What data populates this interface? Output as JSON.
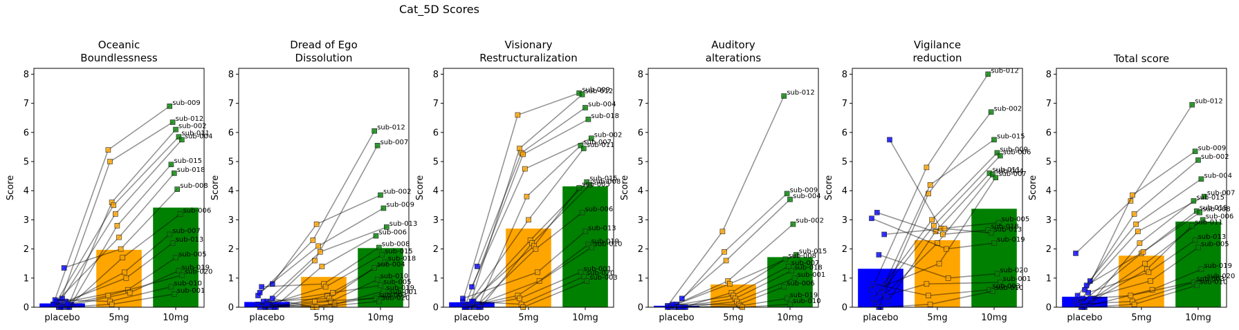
{
  "suptitle": "Cat_5D Scores",
  "colors": {
    "placebo": "#0000ff",
    "5mg": "#ffa500",
    "10mg": "#008000",
    "line": "#555555"
  },
  "chart_data": {
    "type": "bar",
    "title": "Cat_5D Scores",
    "categories": [
      "placebo",
      "5mg",
      "10mg"
    ],
    "ylabel": "Score",
    "ylim": [
      0,
      8.2
    ],
    "yticks": [
      0,
      1,
      2,
      3,
      4,
      5,
      6,
      7,
      8
    ],
    "grid": false,
    "panels": [
      {
        "title": [
          "Oceanic",
          "Boundlessness"
        ],
        "means": [
          0.13,
          1.97,
          3.42
        ],
        "subjects": [
          {
            "id": "sub-009",
            "values": [
              0.1,
              5.4,
              6.9
            ]
          },
          {
            "id": "sub-012",
            "values": [
              0.2,
              5.0,
              6.35
            ]
          },
          {
            "id": "sub-002",
            "values": [
              0.0,
              3.6,
              6.1
            ]
          },
          {
            "id": "sub-011",
            "values": [
              0.1,
              3.5,
              5.85
            ]
          },
          {
            "id": "sub-004",
            "values": [
              0.3,
              3.2,
              5.75
            ]
          },
          {
            "id": "sub-015",
            "values": [
              0.0,
              2.8,
              4.9
            ]
          },
          {
            "id": "sub-018",
            "values": [
              0.2,
              2.4,
              4.6
            ]
          },
          {
            "id": "sub-008",
            "values": [
              1.35,
              2.0,
              4.05
            ]
          },
          {
            "id": "sub-006",
            "values": [
              0.1,
              1.7,
              3.2
            ]
          },
          {
            "id": "sub-007",
            "values": [
              0.0,
              1.2,
              2.5
            ]
          },
          {
            "id": "sub-013",
            "values": [
              0.2,
              1.0,
              2.2
            ]
          },
          {
            "id": "sub-005",
            "values": [
              0.1,
              0.6,
              1.7
            ]
          },
          {
            "id": "sub-019",
            "values": [
              0.0,
              0.5,
              1.25
            ]
          },
          {
            "id": "sub-020",
            "values": [
              0.1,
              0.4,
              1.1
            ]
          },
          {
            "id": "sub-010",
            "values": [
              0.25,
              0.2,
              0.7
            ]
          },
          {
            "id": "sub-001",
            "values": [
              0.0,
              0.1,
              0.45
            ]
          }
        ]
      },
      {
        "title": [
          "Dread of Ego",
          "Dissolution"
        ],
        "means": [
          0.18,
          1.04,
          2.03
        ],
        "subjects": [
          {
            "id": "sub-012",
            "values": [
              0.4,
              2.3,
              6.05
            ]
          },
          {
            "id": "sub-007",
            "values": [
              0.0,
              1.6,
              5.55
            ]
          },
          {
            "id": "sub-002",
            "values": [
              0.8,
              2.85,
              3.85
            ]
          },
          {
            "id": "sub-009",
            "values": [
              0.5,
              2.1,
              3.4
            ]
          },
          {
            "id": "sub-013",
            "values": [
              0.2,
              1.9,
              2.75
            ]
          },
          {
            "id": "sub-006",
            "values": [
              0.0,
              1.4,
              2.45
            ]
          },
          {
            "id": "sub-008",
            "values": [
              0.7,
              0.8,
              2.05
            ]
          },
          {
            "id": "sub-015",
            "values": [
              0.1,
              0.7,
              1.8
            ]
          },
          {
            "id": "sub-018",
            "values": [
              0.0,
              0.4,
              1.55
            ]
          },
          {
            "id": "sub-004",
            "values": [
              0.2,
              0.3,
              1.35
            ]
          },
          {
            "id": "sub-010",
            "values": [
              0.0,
              0.2,
              0.95
            ]
          },
          {
            "id": "sub-005",
            "values": [
              0.1,
              0.5,
              0.75
            ]
          },
          {
            "id": "sub-019",
            "values": [
              0.0,
              0.1,
              0.55
            ]
          },
          {
            "id": "sub-001",
            "values": [
              0.3,
              0.0,
              0.4
            ]
          },
          {
            "id": "sub-003",
            "values": [
              0.0,
              0.2,
              0.3
            ]
          },
          {
            "id": "sub-020",
            "values": [
              0.1,
              0.0,
              0.2
            ]
          }
        ]
      },
      {
        "title": [
          "Visionary",
          "Restructuralization"
        ],
        "means": [
          0.17,
          2.7,
          4.15
        ],
        "subjects": [
          {
            "id": "sub-009",
            "values": [
              0.2,
              6.6,
              7.35
            ]
          },
          {
            "id": "sub-012",
            "values": [
              0.1,
              5.45,
              7.3
            ]
          },
          {
            "id": "sub-004",
            "values": [
              1.4,
              5.3,
              6.85
            ]
          },
          {
            "id": "sub-018",
            "values": [
              0.0,
              5.25,
              6.45
            ]
          },
          {
            "id": "sub-002",
            "values": [
              0.7,
              4.75,
              5.8
            ]
          },
          {
            "id": "sub-007",
            "values": [
              0.1,
              3.8,
              5.55
            ]
          },
          {
            "id": "sub-011",
            "values": [
              0.0,
              3.0,
              5.45
            ]
          },
          {
            "id": "sub-015",
            "values": [
              0.2,
              2.3,
              4.3
            ]
          },
          {
            "id": "sub-008",
            "values": [
              0.0,
              2.2,
              4.2
            ]
          },
          {
            "id": "sub-005",
            "values": [
              0.1,
              2.1,
              4.1
            ]
          },
          {
            "id": "sub-006",
            "values": [
              0.0,
              2.0,
              3.25
            ]
          },
          {
            "id": "sub-013",
            "values": [
              0.3,
              1.2,
              2.6
            ]
          },
          {
            "id": "sub-019",
            "values": [
              0.0,
              0.9,
              2.15
            ]
          },
          {
            "id": "sub-010",
            "values": [
              0.1,
              0.4,
              2.05
            ]
          },
          {
            "id": "sub-001",
            "values": [
              0.0,
              0.3,
              1.2
            ]
          },
          {
            "id": "sub-020",
            "values": [
              0.2,
              0.1,
              1.05
            ]
          },
          {
            "id": "sub-003",
            "values": [
              0.0,
              0.0,
              0.9
            ]
          }
        ]
      },
      {
        "title": [
          "Auditory",
          "alterations"
        ],
        "means": [
          0.05,
          0.78,
          1.72
        ],
        "subjects": [
          {
            "id": "sub-012",
            "values": [
              0.05,
              2.6,
              7.25
            ]
          },
          {
            "id": "sub-009",
            "values": [
              0.0,
              1.9,
              3.9
            ]
          },
          {
            "id": "sub-004",
            "values": [
              0.3,
              1.6,
              3.7
            ]
          },
          {
            "id": "sub-002",
            "values": [
              0.0,
              0.9,
              2.85
            ]
          },
          {
            "id": "sub-015",
            "values": [
              0.1,
              0.8,
              1.8
            ]
          },
          {
            "id": "sub-008",
            "values": [
              0.0,
              0.5,
              1.65
            ]
          },
          {
            "id": "sub-007",
            "values": [
              0.05,
              0.4,
              1.4
            ]
          },
          {
            "id": "sub-018",
            "values": [
              0.0,
              0.3,
              1.25
            ]
          },
          {
            "id": "sub-001",
            "values": [
              0.0,
              0.2,
              1.0
            ]
          },
          {
            "id": "sub-006",
            "values": [
              0.1,
              0.1,
              0.7
            ]
          },
          {
            "id": "sub-019",
            "values": [
              0.0,
              0.05,
              0.3
            ]
          },
          {
            "id": "sub-010",
            "values": [
              0.0,
              0.0,
              0.1
            ]
          }
        ]
      },
      {
        "title": [
          "Vigilance",
          "reduction"
        ],
        "means": [
          1.32,
          2.3,
          3.38
        ],
        "subjects": [
          {
            "id": "sub-012",
            "values": [
              0.6,
              4.8,
              8.0
            ]
          },
          {
            "id": "sub-002",
            "values": [
              0.0,
              3.9,
              6.7
            ]
          },
          {
            "id": "sub-015",
            "values": [
              0.9,
              4.2,
              5.75
            ]
          },
          {
            "id": "sub-009",
            "values": [
              0.3,
              3.0,
              5.3
            ]
          },
          {
            "id": "sub-006",
            "values": [
              0.5,
              2.8,
              5.2
            ]
          },
          {
            "id": "sub-011",
            "values": [
              0.2,
              2.6,
              4.6
            ]
          },
          {
            "id": "sub-004",
            "values": [
              0.1,
              2.2,
              4.55
            ]
          },
          {
            "id": "sub-007",
            "values": [
              0.7,
              1.5,
              4.45
            ]
          },
          {
            "id": "sub-005",
            "values": [
              5.75,
              2.7,
              2.9
            ]
          },
          {
            "id": "sub-018",
            "values": [
              3.25,
              2.5,
              2.65
            ]
          },
          {
            "id": "sub-013",
            "values": [
              2.5,
              2.7,
              2.55
            ]
          },
          {
            "id": "sub-019",
            "values": [
              3.05,
              2.0,
              2.2
            ]
          },
          {
            "id": "sub-020",
            "values": [
              1.8,
              1.0,
              1.15
            ]
          },
          {
            "id": "sub-001",
            "values": [
              0.4,
              0.8,
              0.85
            ]
          },
          {
            "id": "sub-003",
            "values": [
              0.8,
              0.4,
              0.6
            ]
          },
          {
            "id": "sub-010",
            "values": [
              0.0,
              0.1,
              0.55
            ]
          }
        ]
      },
      {
        "title": [
          "Total score"
        ],
        "means": [
          0.36,
          1.77,
          2.94
        ],
        "subjects": [
          {
            "id": "sub-012",
            "values": [
              1.85,
              3.65,
              6.95
            ]
          },
          {
            "id": "sub-009",
            "values": [
              0.3,
              3.85,
              5.35
            ]
          },
          {
            "id": "sub-002",
            "values": [
              0.9,
              3.2,
              5.05
            ]
          },
          {
            "id": "sub-004",
            "values": [
              0.4,
              2.85,
              4.4
            ]
          },
          {
            "id": "sub-007",
            "values": [
              0.6,
              2.6,
              3.8
            ]
          },
          {
            "id": "sub-015",
            "values": [
              0.2,
              2.2,
              3.65
            ]
          },
          {
            "id": "sub-018",
            "values": [
              0.1,
              1.85,
              3.3
            ]
          },
          {
            "id": "sub-008",
            "values": [
              0.75,
              1.9,
              3.25
            ]
          },
          {
            "id": "sub-006",
            "values": [
              0.3,
              1.5,
              3.0
            ]
          },
          {
            "id": "sub-011",
            "values": [
              0.0,
              1.3,
              2.8
            ]
          },
          {
            "id": "sub-013",
            "values": [
              0.5,
              1.2,
              2.3
            ]
          },
          {
            "id": "sub-005",
            "values": [
              0.2,
              0.9,
              2.05
            ]
          },
          {
            "id": "sub-019",
            "values": [
              0.0,
              0.6,
              1.3
            ]
          },
          {
            "id": "sub-020",
            "values": [
              0.3,
              0.4,
              0.95
            ]
          },
          {
            "id": "sub-003",
            "values": [
              0.1,
              0.2,
              0.85
            ]
          },
          {
            "id": "sub-010",
            "values": [
              0.0,
              0.1,
              0.75
            ]
          }
        ]
      }
    ]
  }
}
